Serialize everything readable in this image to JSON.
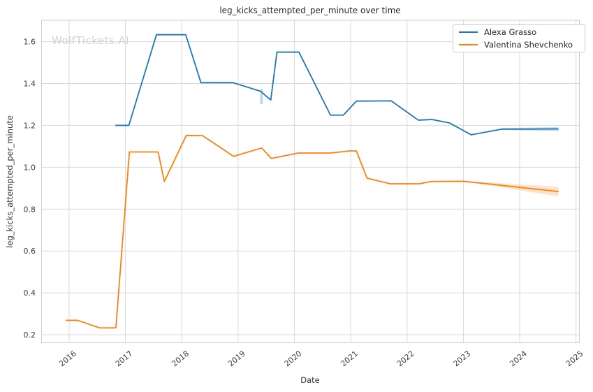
{
  "watermark": "WolfTickets.AI",
  "chart_data": {
    "type": "line",
    "title": "leg_kicks_attempted_per_minute over time",
    "xlabel": "Date",
    "ylabel": "leg_kicks_attempted_per_minute",
    "grid": true,
    "legend_position": "upper right",
    "xlim": [
      2015.51,
      2025.06
    ],
    "ylim": [
      0.162,
      1.702
    ],
    "x_ticks": [
      2016,
      2017,
      2018,
      2019,
      2020,
      2021,
      2022,
      2023,
      2024,
      2025
    ],
    "x_tick_labels": [
      "2016",
      "2017",
      "2018",
      "2019",
      "2020",
      "2021",
      "2022",
      "2023",
      "2024",
      "2025"
    ],
    "y_ticks": [
      0.2,
      0.4,
      0.6,
      0.8,
      1.0,
      1.2,
      1.4,
      1.6
    ],
    "y_tick_labels": [
      "0.2",
      "0.4",
      "0.6",
      "0.8",
      "1.0",
      "1.2",
      "1.4",
      "1.6"
    ],
    "series": [
      {
        "name": "Alexa Grasso",
        "color": "#1f77b4",
        "x": [
          2016.82,
          2017.06,
          2017.55,
          2018.07,
          2018.34,
          2018.91,
          2019.4,
          2019.58,
          2019.69,
          2020.08,
          2020.64,
          2020.87,
          2021.1,
          2021.72,
          2022.2,
          2022.44,
          2022.75,
          2023.14,
          2023.68,
          2024.69
        ],
        "y": [
          1.2,
          1.2,
          1.633,
          1.633,
          1.404,
          1.404,
          1.363,
          1.321,
          1.55,
          1.55,
          1.249,
          1.249,
          1.316,
          1.317,
          1.225,
          1.228,
          1.212,
          1.155,
          1.182,
          1.183
        ]
      },
      {
        "name": "Valentina Shevchenko",
        "color": "#ff7f0e",
        "x": [
          2015.94,
          2016.15,
          2016.54,
          2016.83,
          2017.07,
          2017.58,
          2017.69,
          2018.08,
          2018.37,
          2018.92,
          2019.42,
          2019.59,
          2020.07,
          2020.64,
          2020.98,
          2021.1,
          2021.29,
          2021.7,
          2022.22,
          2022.43,
          2023.0,
          2023.5,
          2024.0,
          2024.69
        ],
        "y": [
          0.269,
          0.269,
          0.233,
          0.233,
          1.073,
          1.073,
          0.932,
          1.152,
          1.151,
          1.052,
          1.092,
          1.042,
          1.068,
          1.068,
          1.078,
          1.078,
          0.948,
          0.921,
          0.921,
          0.932,
          0.933,
          0.919,
          0.904,
          0.884
        ]
      }
    ],
    "bands": [
      {
        "name": "valentina-forecast-ci",
        "color": "#ff7f0e",
        "opacity": 0.22,
        "x": [
          2023.0,
          2023.5,
          2024.0,
          2024.69
        ],
        "upper": [
          0.933,
          0.926,
          0.918,
          0.907
        ],
        "lower": [
          0.933,
          0.911,
          0.89,
          0.861
        ]
      },
      {
        "name": "alexa-forecast-ci",
        "color": "#1f77b4",
        "opacity": 0.25,
        "x": [
          2023.68,
          2024.69
        ],
        "upper": [
          1.187,
          1.192
        ],
        "lower": [
          1.178,
          1.173
        ]
      },
      {
        "name": "alexa-point-ci",
        "color": "#1f77b4",
        "opacity": 0.28,
        "x": [
          2019.39,
          2019.44
        ],
        "upper": [
          1.372,
          1.372
        ],
        "lower": [
          1.302,
          1.302
        ]
      }
    ],
    "colors": {
      "grid": "#d9d9d9",
      "spine": "#cccccc",
      "title_text": "#2b2b2b",
      "tick_text": "#3a3a3a",
      "watermark": "#d2d2d2",
      "legend_border": "#cccccc",
      "background": "#ffffff"
    }
  }
}
